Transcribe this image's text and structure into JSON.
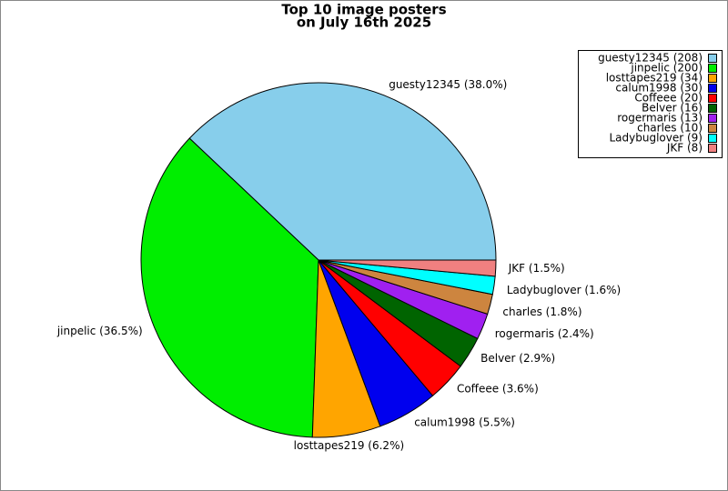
{
  "chart_data": {
    "type": "pie",
    "title": [
      "Top 10 image posters",
      "on July 16th 2025"
    ],
    "values": [
      208,
      200,
      34,
      30,
      20,
      16,
      13,
      10,
      9,
      8
    ],
    "value_labels": [
      "guesty12345 (38.0%)",
      "jinpelic (36.5%)",
      "losttapes219 (6.2%)",
      "calum1998 (5.5%)",
      "Coffeee (3.6%)",
      "Belver (2.9%)",
      "rogermaris (2.4%)",
      "charles (1.8%)",
      "Ladybuglover (1.6%)",
      "JKF (1.5%)"
    ],
    "legend_labels": [
      "guesty12345 (208)",
      "jinpelic (200)",
      "losttapes219 (34)",
      "calum1998 (30)",
      "Coffeee (20)",
      "Belver (16)",
      "rogermaris (13)",
      "charles (10)",
      "Ladybuglover (9)",
      "JKF (8)"
    ],
    "colors": [
      "#87ceeb",
      "#00ee00",
      "#ffa500",
      "#0000ee",
      "#ff0000",
      "#006400",
      "#a020f0",
      "#cd853f",
      "#00ffff",
      "#f08080"
    ],
    "legend": "upper right"
  }
}
